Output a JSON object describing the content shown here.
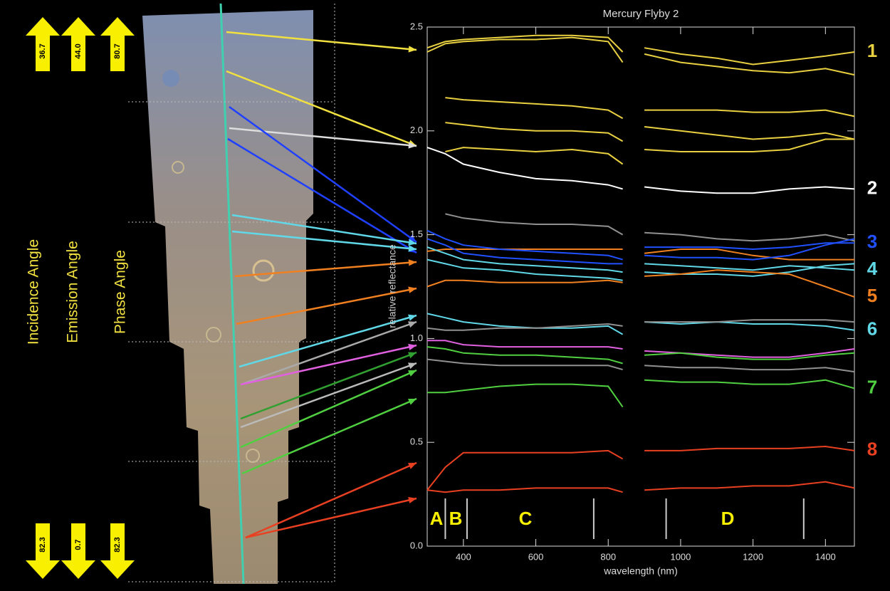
{
  "left_panel": {
    "angle_labels": [
      "Incidence Angle",
      "Emission Angle",
      "Phase Angle"
    ],
    "top_angles": [
      "36.7",
      "44.0",
      "80.7"
    ],
    "bottom_angles": [
      "82.3",
      "0.7",
      "82.3"
    ]
  },
  "chart_data": {
    "type": "line",
    "title": "Mercury Flyby 2",
    "x_label": "wavelength (nm)",
    "y_label": "relative reflectance",
    "xlim": [
      300,
      1480
    ],
    "ylim": [
      0,
      2.5
    ],
    "xticks": [
      400,
      600,
      800,
      1000,
      1200,
      1400
    ],
    "yticks": [
      {
        "value": 0,
        "label": "0.0"
      },
      {
        "value": 0.5,
        "label": "0.5"
      },
      {
        "value": 1,
        "label": "1.0"
      },
      {
        "value": 1.5,
        "label": "1.5"
      },
      {
        "value": 2,
        "label": "2.0"
      },
      {
        "value": 2.5,
        "label": "2.5"
      }
    ],
    "region_boundaries": [
      350,
      410,
      760,
      960,
      1340
    ],
    "region_labels": [
      "A",
      "B",
      "C",
      "D"
    ],
    "x": [
      300,
      350,
      400,
      500,
      600,
      700,
      800,
      840,
      870,
      900,
      1000,
      1100,
      1200,
      1300,
      1400,
      1480
    ],
    "series": [
      {
        "name": "1",
        "color": "#e8d040",
        "values": [
          2.4,
          2.43,
          2.44,
          2.45,
          2.46,
          2.46,
          2.45,
          2.38,
          null,
          2.4,
          2.37,
          2.35,
          2.32,
          2.34,
          2.36,
          2.38
        ]
      },
      {
        "color": "#e8d040",
        "values": [
          2.38,
          2.42,
          2.43,
          2.44,
          2.44,
          2.45,
          2.43,
          2.33,
          null,
          2.37,
          2.33,
          2.31,
          2.29,
          2.28,
          2.3,
          2.27
        ]
      },
      {
        "color": "#e8d040",
        "values": [
          null,
          2.16,
          2.15,
          2.14,
          2.13,
          2.12,
          2.1,
          2.06,
          null,
          2.1,
          2.1,
          2.1,
          2.09,
          2.09,
          2.1,
          2.07
        ]
      },
      {
        "color": "#e8d040",
        "values": [
          null,
          2.04,
          2.03,
          2.01,
          2.0,
          2.0,
          1.99,
          1.95,
          null,
          2.02,
          2.0,
          1.98,
          1.96,
          1.97,
          1.99,
          1.96
        ]
      },
      {
        "color": "#e8d040",
        "values": [
          null,
          1.9,
          1.92,
          1.91,
          1.9,
          1.91,
          1.89,
          1.84,
          null,
          1.91,
          1.9,
          1.9,
          1.9,
          1.91,
          1.96,
          1.96
        ]
      },
      {
        "name": "2",
        "color": "#ffffff",
        "values": [
          1.92,
          1.89,
          1.84,
          1.8,
          1.77,
          1.76,
          1.74,
          1.72,
          null,
          1.73,
          1.71,
          1.7,
          1.7,
          1.72,
          1.73,
          1.72
        ]
      },
      {
        "color": "#909090",
        "values": [
          null,
          1.6,
          1.58,
          1.56,
          1.55,
          1.55,
          1.54,
          1.5,
          null,
          1.51,
          1.5,
          1.48,
          1.47,
          1.48,
          1.5,
          1.47
        ]
      },
      {
        "color": "#f08020",
        "values": [
          1.42,
          1.43,
          1.43,
          1.43,
          1.43,
          1.43,
          1.43,
          1.43,
          null,
          1.41,
          1.43,
          1.43,
          1.4,
          1.38,
          1.38,
          1.38
        ]
      },
      {
        "name": "3",
        "color": "#2050ff",
        "values": [
          1.52,
          1.48,
          1.45,
          1.43,
          1.42,
          1.41,
          1.4,
          1.38,
          null,
          1.44,
          1.44,
          1.44,
          1.43,
          1.44,
          1.46,
          1.46
        ]
      },
      {
        "color": "#2050ff",
        "values": [
          1.48,
          1.45,
          1.41,
          1.39,
          1.38,
          1.37,
          1.36,
          1.36,
          null,
          1.4,
          1.39,
          1.39,
          1.38,
          1.4,
          1.45,
          1.48
        ]
      },
      {
        "name": "4",
        "color": "#60d8e8",
        "values": [
          1.44,
          1.41,
          1.38,
          1.36,
          1.35,
          1.34,
          1.33,
          1.32,
          null,
          1.36,
          1.35,
          1.34,
          1.33,
          1.35,
          1.34,
          1.33
        ]
      },
      {
        "color": "#60d8e8",
        "values": [
          1.38,
          1.36,
          1.34,
          1.33,
          1.31,
          1.3,
          1.29,
          1.28,
          null,
          1.32,
          1.31,
          1.31,
          1.3,
          1.32,
          1.35,
          1.36
        ]
      },
      {
        "name": "5",
        "color": "#f08020",
        "values": [
          1.25,
          1.28,
          1.28,
          1.27,
          1.27,
          1.27,
          1.28,
          1.27,
          null,
          1.3,
          1.31,
          1.33,
          1.32,
          1.31,
          1.25,
          1.2
        ]
      },
      {
        "name": "6",
        "color": "#60d8e8",
        "values": [
          1.12,
          1.1,
          1.08,
          1.06,
          1.05,
          1.05,
          1.06,
          1.02,
          null,
          1.08,
          1.07,
          1.08,
          1.07,
          1.07,
          1.06,
          1.04
        ]
      },
      {
        "color": "#909090",
        "values": [
          1.05,
          1.04,
          1.04,
          1.05,
          1.05,
          1.06,
          1.07,
          1.06,
          null,
          1.08,
          1.08,
          1.08,
          1.09,
          1.09,
          1.09,
          1.08
        ]
      },
      {
        "color": "#e060e0",
        "values": [
          0.99,
          0.99,
          0.97,
          0.96,
          0.96,
          0.96,
          0.96,
          0.95,
          null,
          0.94,
          0.93,
          0.92,
          0.91,
          0.91,
          0.93,
          0.95
        ]
      },
      {
        "color": "#50d040",
        "values": [
          0.96,
          0.95,
          0.93,
          0.92,
          0.92,
          0.91,
          0.9,
          0.88,
          null,
          0.92,
          0.93,
          0.91,
          0.9,
          0.9,
          0.92,
          0.93
        ]
      },
      {
        "color": "#909090",
        "values": [
          0.9,
          0.89,
          0.88,
          0.87,
          0.87,
          0.87,
          0.87,
          0.85,
          null,
          0.87,
          0.86,
          0.86,
          0.85,
          0.85,
          0.86,
          0.84
        ]
      },
      {
        "name": "7",
        "color": "#50d040",
        "values": [
          0.74,
          0.74,
          0.75,
          0.77,
          0.78,
          0.78,
          0.77,
          0.67,
          null,
          0.8,
          0.79,
          0.79,
          0.78,
          0.78,
          0.8,
          0.76
        ]
      },
      {
        "name": "8",
        "color": "#e84020",
        "values": [
          0.27,
          0.38,
          0.45,
          0.45,
          0.45,
          0.45,
          0.46,
          0.42,
          null,
          0.46,
          0.46,
          0.47,
          0.47,
          0.47,
          0.48,
          0.46
        ]
      },
      {
        "color": "#e84020",
        "values": [
          0.27,
          0.26,
          0.27,
          0.27,
          0.28,
          0.28,
          0.28,
          0.26,
          null,
          0.27,
          0.28,
          0.28,
          0.29,
          0.29,
          0.31,
          0.28
        ]
      }
    ]
  }
}
